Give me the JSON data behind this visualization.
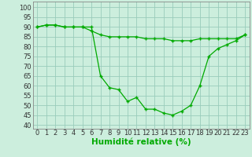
{
  "title": "",
  "xlabel": "Humidité relative (%)",
  "ylabel": "",
  "background_color": "#cceedd",
  "grid_color": "#99ccbb",
  "line_color": "#00aa00",
  "marker_color": "#00aa00",
  "xlim": [
    -0.5,
    23.5
  ],
  "ylim": [
    38,
    103
  ],
  "yticks": [
    40,
    45,
    50,
    55,
    60,
    65,
    70,
    75,
    80,
    85,
    90,
    95,
    100
  ],
  "xticks": [
    0,
    1,
    2,
    3,
    4,
    5,
    6,
    7,
    8,
    9,
    10,
    11,
    12,
    13,
    14,
    15,
    16,
    17,
    18,
    19,
    20,
    21,
    22,
    23
  ],
  "series1_x": [
    0,
    1,
    2,
    3,
    4,
    5,
    6,
    7,
    8,
    9,
    10,
    11,
    12,
    13,
    14,
    15,
    16,
    17,
    18,
    19,
    20,
    21,
    22,
    23
  ],
  "series1_y": [
    90,
    91,
    91,
    90,
    90,
    90,
    90,
    65,
    59,
    58,
    52,
    54,
    48,
    48,
    46,
    45,
    47,
    50,
    60,
    75,
    79,
    81,
    83,
    86
  ],
  "series2_x": [
    0,
    1,
    2,
    3,
    4,
    5,
    6,
    7,
    8,
    9,
    10,
    11,
    12,
    13,
    14,
    15,
    16,
    17,
    18,
    19,
    20,
    21,
    22,
    23
  ],
  "series2_y": [
    90,
    91,
    91,
    90,
    90,
    90,
    88,
    86,
    85,
    85,
    85,
    85,
    84,
    84,
    84,
    83,
    83,
    83,
    84,
    84,
    84,
    84,
    84,
    86
  ],
  "xlabel_fontsize": 7.5,
  "tick_fontsize": 6.0
}
